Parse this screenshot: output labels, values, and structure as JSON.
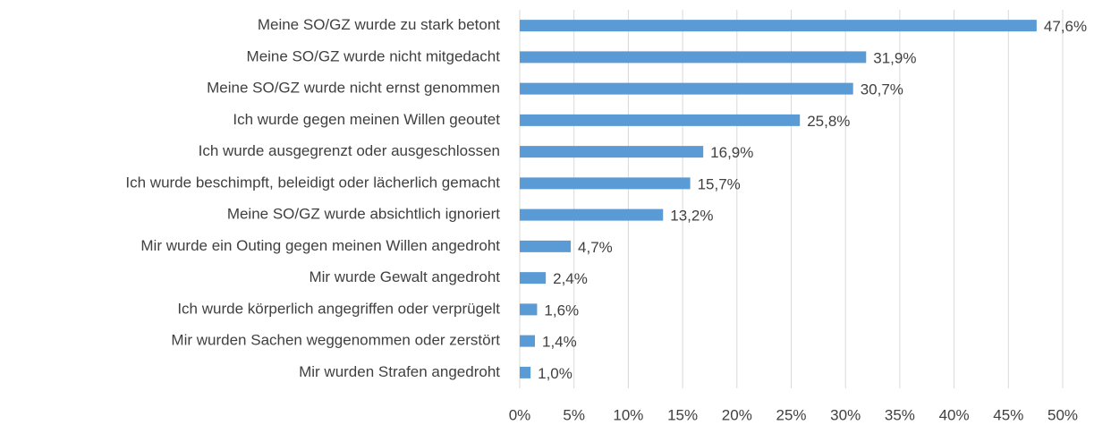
{
  "chart_data": {
    "type": "bar",
    "orientation": "horizontal",
    "categories": [
      "Meine SO/GZ wurde zu stark betont",
      "Meine SO/GZ wurde nicht mitgedacht",
      "Meine SO/GZ wurde nicht ernst genommen",
      "Ich wurde gegen meinen Willen geoutet",
      "Ich wurde ausgegrenzt oder ausgeschlossen",
      "Ich wurde beschimpft, beleidigt oder lächerlich gemacht",
      "Meine SO/GZ wurde absichtlich ignoriert",
      "Mir wurde ein Outing gegen meinen Willen angedroht",
      "Mir wurde Gewalt angedroht",
      "Ich wurde körperlich angegriffen oder verprügelt",
      "Mir wurden Sachen weggenommen oder zerstört",
      "Mir wurden Strafen angedroht"
    ],
    "values": [
      47.6,
      31.9,
      30.7,
      25.8,
      16.9,
      15.7,
      13.2,
      4.7,
      2.4,
      1.6,
      1.4,
      1.0
    ],
    "value_labels": [
      "47,6%",
      "31,9%",
      "30,7%",
      "25,8%",
      "16,9%",
      "15,7%",
      "13,2%",
      "4,7%",
      "2,4%",
      "1,6%",
      "1,4%",
      "1,0%"
    ],
    "color": "#5b9bd5",
    "xlim": [
      0,
      50
    ],
    "xticks": [
      {
        "value": 0,
        "label": "0%"
      },
      {
        "value": 5,
        "label": "5%"
      },
      {
        "value": 10,
        "label": "10%"
      },
      {
        "value": 15,
        "label": "15%"
      },
      {
        "value": 20,
        "label": "20%"
      },
      {
        "value": 25,
        "label": "25%"
      },
      {
        "value": 30,
        "label": "30%"
      },
      {
        "value": 35,
        "label": "35%"
      },
      {
        "value": 40,
        "label": "40%"
      },
      {
        "value": 45,
        "label": "45%"
      },
      {
        "value": 50,
        "label": "50%"
      }
    ],
    "grid": true
  }
}
